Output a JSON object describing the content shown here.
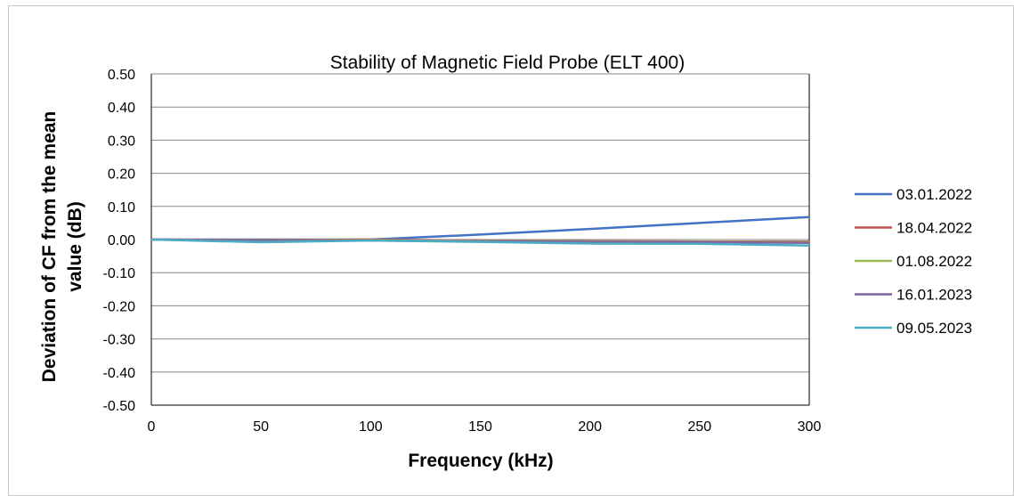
{
  "chart_data": {
    "type": "line",
    "title": "Stability of Magnetic Field Probe (ELT 400)",
    "xlabel": "Frequency (kHz)",
    "ylabel_lines": [
      "Deviation of CF from the mean",
      "value (dB)"
    ],
    "xlim": [
      0,
      300
    ],
    "ylim": [
      -0.5,
      0.5
    ],
    "x_ticks": [
      "0",
      "50",
      "100",
      "150",
      "200",
      "250",
      "300"
    ],
    "y_ticks": [
      "0.50",
      "0.40",
      "0.30",
      "0.20",
      "0.10",
      "0.00",
      "-0.10",
      "-0.20",
      "-0.30",
      "-0.40",
      "-0.50"
    ],
    "grid": "horizontal",
    "legend_position": "right",
    "series": [
      {
        "name": "03.01.2022",
        "color": "#4472C4",
        "x": [
          0,
          50,
          100,
          150,
          200,
          250,
          300
        ],
        "y": [
          0.0,
          0.0,
          0.0,
          0.015,
          0.032,
          0.05,
          0.068
        ]
      },
      {
        "name": "18.04.2022",
        "color": "#C0504D",
        "x": [
          0,
          50,
          100,
          150,
          200,
          250,
          300
        ],
        "y": [
          0.0,
          -0.002,
          0.0,
          -0.003,
          -0.005,
          -0.006,
          -0.006
        ]
      },
      {
        "name": "01.08.2022",
        "color": "#9BBB59",
        "x": [
          0,
          50,
          100,
          150,
          200,
          250,
          300
        ],
        "y": [
          0.0,
          -0.003,
          -0.002,
          -0.004,
          -0.006,
          -0.007,
          -0.008
        ]
      },
      {
        "name": "16.01.2023",
        "color": "#8064A2",
        "x": [
          0,
          50,
          100,
          150,
          200,
          250,
          300
        ],
        "y": [
          0.0,
          -0.004,
          -0.003,
          -0.005,
          -0.007,
          -0.008,
          -0.01
        ]
      },
      {
        "name": "09.05.2023",
        "color": "#4BACC6",
        "x": [
          0,
          50,
          100,
          150,
          200,
          250,
          300
        ],
        "y": [
          0.0,
          -0.008,
          -0.003,
          -0.007,
          -0.012,
          -0.013,
          -0.018
        ]
      }
    ]
  }
}
